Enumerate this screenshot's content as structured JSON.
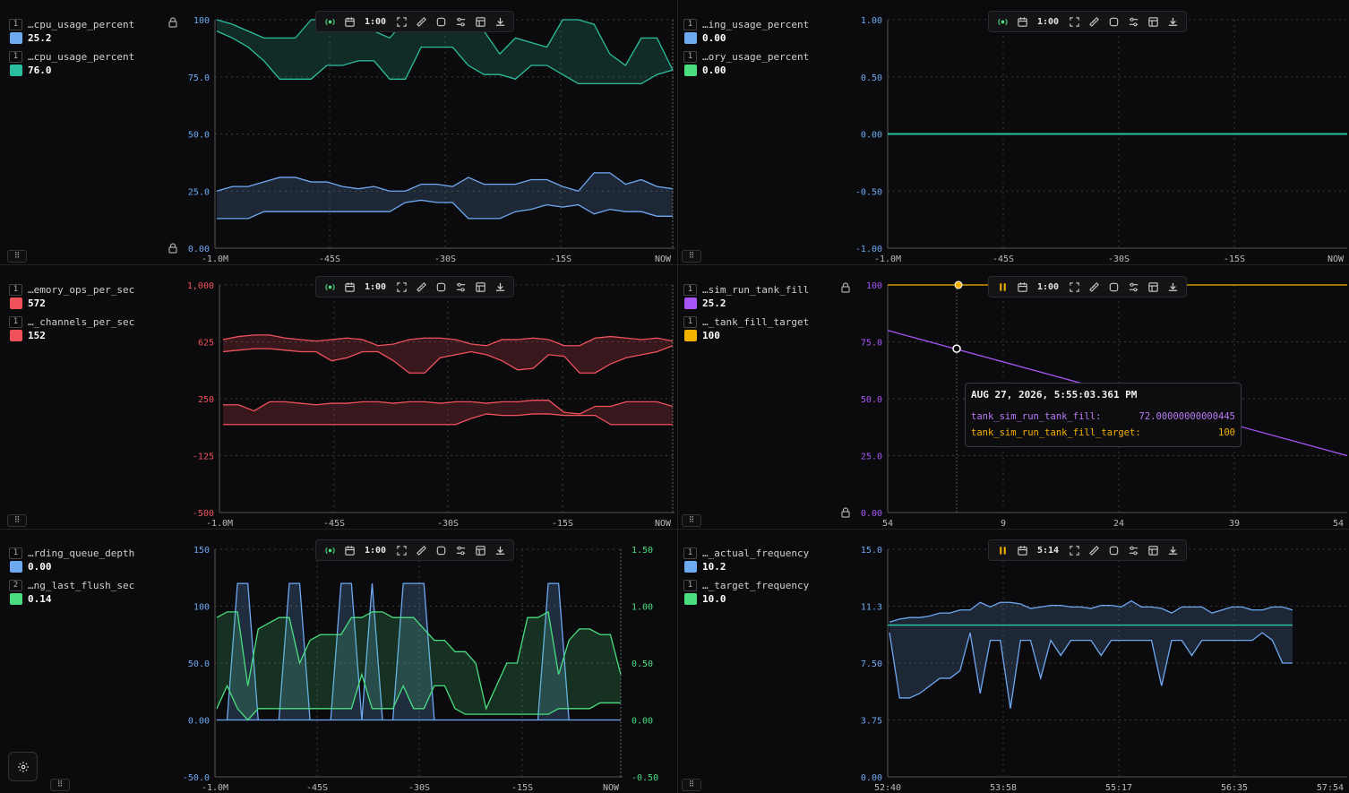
{
  "panels": [
    {
      "id": "p1",
      "legend": [
        {
          "index": "1",
          "name": "…cpu_usage_percent",
          "value": "25.2",
          "color": "#6ea9f2"
        },
        {
          "index": "1",
          "name": "…cpu_usage_percent",
          "value": "76.0",
          "color": "#2bbfa0"
        }
      ],
      "toolbar_time": "1:00",
      "y_ticks": [
        "100",
        "75.0",
        "50.0",
        "25.0",
        "0.00"
      ],
      "x_ticks": [
        "-1.0M",
        "-45S",
        "-30S",
        "-15S",
        "NOW"
      ]
    },
    {
      "id": "p2",
      "legend": [
        {
          "index": "1",
          "name": "…ing_usage_percent",
          "value": "0.00",
          "color": "#6ea9f2"
        },
        {
          "index": "1",
          "name": "…ory_usage_percent",
          "value": "0.00",
          "color": "#4ade80"
        }
      ],
      "toolbar_time": "1:00",
      "y_ticks": [
        "1.00",
        "0.50",
        "0.00",
        "-0.50",
        "-1.00"
      ],
      "x_ticks": [
        "-1.0M",
        "-45S",
        "-30S",
        "-15S",
        "NOW"
      ]
    },
    {
      "id": "p3",
      "legend": [
        {
          "index": "1",
          "name": "…emory_ops_per_sec",
          "value": "572",
          "color": "#f0525c"
        },
        {
          "index": "1",
          "name": "…_channels_per_sec",
          "value": "152",
          "color": "#f0525c"
        }
      ],
      "toolbar_time": "1:00",
      "y_ticks": [
        "1,000",
        "625",
        "250",
        "-125",
        "-500"
      ],
      "x_ticks": [
        "-1.0M",
        "-45S",
        "-30S",
        "-15S",
        "NOW"
      ]
    },
    {
      "id": "p4",
      "legend": [
        {
          "index": "1",
          "name": "…sim_run_tank_fill",
          "value": "25.2",
          "color": "#a855f7"
        },
        {
          "index": "1",
          "name": "…_tank_fill_target",
          "value": "100",
          "color": "#f5b100"
        }
      ],
      "toolbar_time": "1:00",
      "y_ticks": [
        "100",
        "75.0",
        "50.0",
        "25.0",
        "0.00"
      ],
      "x_ticks": [
        "54",
        "9",
        "24",
        "39",
        "54"
      ],
      "tooltip": {
        "title": "AUG 27, 2026, 5:55:03.361 PM",
        "rows": [
          {
            "label": "tank_sim_run_tank_fill:",
            "value": "72.00000000000445",
            "color": "#b77af5"
          },
          {
            "label": "tank_sim_run_tank_fill_target:",
            "value": "100",
            "color": "#f5b100"
          }
        ]
      }
    },
    {
      "id": "p5",
      "legend": [
        {
          "index": "1",
          "name": "…rding_queue_depth",
          "value": "0.00",
          "color": "#6ea9f2"
        },
        {
          "index": "2",
          "name": "…ng_last_flush_sec",
          "value": "0.14",
          "color": "#4ade80"
        }
      ],
      "toolbar_time": "1:00",
      "y_ticks": [
        "150",
        "100",
        "50.0",
        "0.00",
        "-50.0"
      ],
      "y2_ticks": [
        "1.50",
        "1.00",
        "0.50",
        "0.00",
        "-0.50"
      ],
      "x_ticks": [
        "-1.0M",
        "-45S",
        "-30S",
        "-15S",
        "NOW"
      ]
    },
    {
      "id": "p6",
      "legend": [
        {
          "index": "1",
          "name": "…_actual_frequency",
          "value": "10.2",
          "color": "#6ea9f2"
        },
        {
          "index": "1",
          "name": "…_target_frequency",
          "value": "10.0",
          "color": "#4ade80"
        }
      ],
      "toolbar_time": "5:14",
      "y_ticks": [
        "15.0",
        "11.3",
        "7.50",
        "3.75",
        "0.00"
      ],
      "x_ticks": [
        "52:40",
        "53:58",
        "55:17",
        "56:35",
        "57:54"
      ]
    }
  ],
  "colors": {
    "blue": "#6ea9f2",
    "teal": "#2bbfa0",
    "red": "#f0525c",
    "purple": "#a855f7",
    "orange": "#f5b100",
    "green": "#4ade80"
  }
}
